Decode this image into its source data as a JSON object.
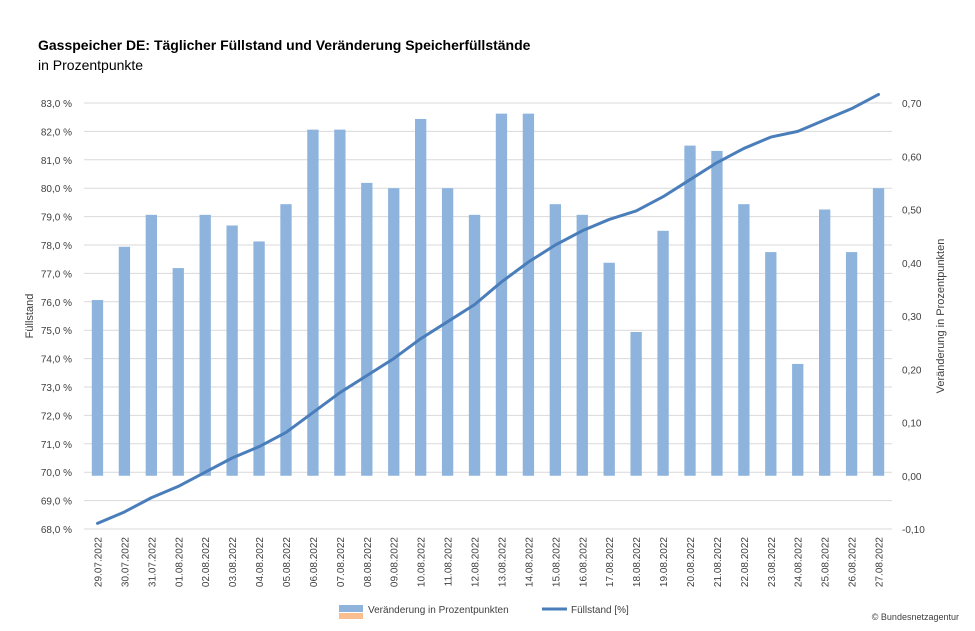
{
  "title": "Gasspeicher DE: Täglicher Füllstand und Veränderung Speicherfüllstände",
  "subtitle": "in Prozentpunkte",
  "copyright": "© Bundesnetzagentur",
  "chart_data": {
    "type": "bar",
    "categories": [
      "29.07.2022",
      "30.07.2022",
      "31.07.2022",
      "01.08.2022",
      "02.08.2022",
      "03.08.2022",
      "04.08.2022",
      "05.08.2022",
      "06.08.2022",
      "07.08.2022",
      "08.08.2022",
      "09.08.2022",
      "10.08.2022",
      "11.08.2022",
      "12.08.2022",
      "13.08.2022",
      "14.08.2022",
      "15.08.2022",
      "16.08.2022",
      "17.08.2022",
      "18.08.2022",
      "19.08.2022",
      "20.08.2022",
      "21.08.2022",
      "22.08.2022",
      "23.08.2022",
      "24.08.2022",
      "25.08.2022",
      "26.08.2022",
      "27.08.2022"
    ],
    "series": [
      {
        "name": "Veränderung in Prozentpunkten",
        "type": "bar",
        "axis": "right",
        "color": "#8eb4de",
        "values": [
          0.33,
          0.43,
          0.49,
          0.39,
          0.49,
          0.47,
          0.44,
          0.51,
          0.65,
          0.65,
          0.55,
          0.54,
          0.67,
          0.54,
          0.49,
          0.68,
          0.68,
          0.51,
          0.49,
          0.4,
          0.27,
          0.46,
          0.62,
          0.61,
          0.51,
          0.42,
          0.21,
          0.5,
          0.42,
          0.54
        ]
      },
      {
        "name": "Füllstand [%]",
        "type": "line",
        "axis": "left",
        "color": "#4a7ebb",
        "values": [
          68.2,
          68.6,
          69.1,
          69.5,
          70.0,
          70.5,
          70.9,
          71.4,
          72.1,
          72.8,
          73.4,
          74.0,
          74.7,
          75.3,
          75.9,
          76.7,
          77.4,
          78.0,
          78.5,
          78.9,
          79.2,
          79.7,
          80.3,
          80.9,
          81.4,
          81.8,
          82.0,
          82.4,
          82.8,
          83.3
        ]
      }
    ],
    "y_left": {
      "label": "Füllstand",
      "range": [
        68,
        83
      ],
      "ticks": [
        "68,0 %",
        "69,0 %",
        "70,0 %",
        "71,0 %",
        "72,0 %",
        "73,0 %",
        "74,0 %",
        "75,0 %",
        "76,0 %",
        "77,0 %",
        "78,0 %",
        "79,0 %",
        "80,0 %",
        "81,0 %",
        "82,0 %",
        "83,0 %"
      ]
    },
    "y_right": {
      "label": "Veränderung in Prozentpunkten",
      "range": [
        -0.1,
        0.7
      ],
      "ticks": [
        "-0,10",
        "0,00",
        "0,10",
        "0,20",
        "0,30",
        "0,40",
        "0,50",
        "0,60",
        "0,70"
      ]
    },
    "grid": true,
    "legend_position": "bottom",
    "legend": [
      {
        "label": "Veränderung in Prozentpunkten",
        "color": "#8eb4de",
        "extra_swatch_color": "#f9bf8f"
      },
      {
        "label": "Füllstand [%]",
        "color": "#4a7ebb"
      }
    ]
  }
}
